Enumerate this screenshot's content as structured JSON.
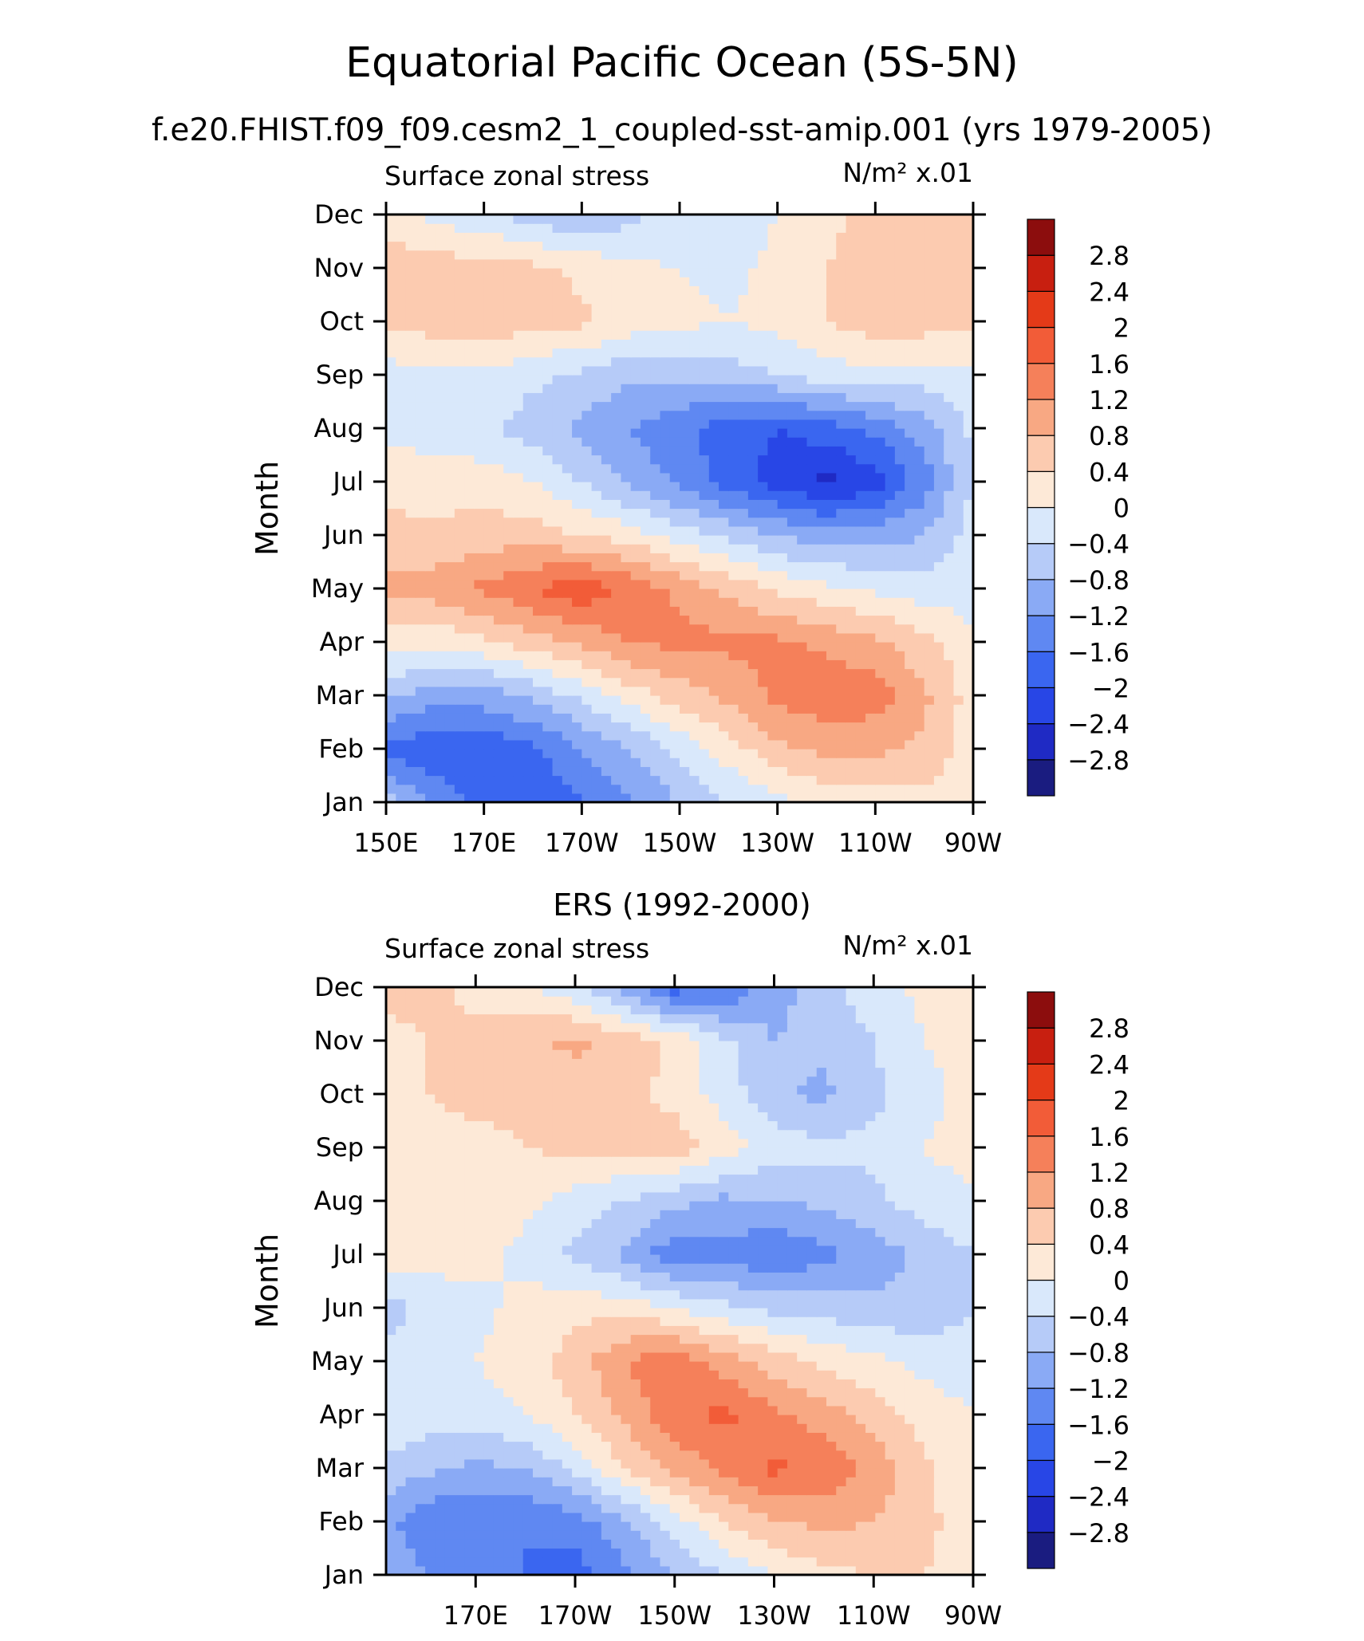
{
  "chart_data": [
    {
      "type": "heatmap",
      "title": "Equatorial Pacific Ocean (5S-5N)",
      "subtitle": "f.e20.FHIST.f09_f09.cesm2_1_coupled-sst-amip.001 (yrs 1979-2005)",
      "left_label": "Surface zonal stress",
      "units": "N/m² x.01",
      "ylabel": "Month",
      "x_ticks": [
        "150E",
        "170E",
        "170W",
        "150W",
        "130W",
        "110W",
        "90W"
      ],
      "y_ticks": [
        "Jan",
        "Feb",
        "Mar",
        "Apr",
        "May",
        "Jun",
        "Jul",
        "Aug",
        "Sep",
        "Oct",
        "Nov",
        "Dec"
      ],
      "xlim": [
        150,
        270
      ],
      "levels": [
        -2.8,
        -2.4,
        -2,
        -1.6,
        -1.2,
        -0.8,
        -0.4,
        0,
        0.4,
        0.8,
        1.2,
        1.6,
        2,
        2.4,
        2.8
      ],
      "colorbar_labels": [
        "2.8",
        "2.4",
        "2",
        "1.6",
        "1.2",
        "0.8",
        "0.4",
        "0",
        "−0.4",
        "−0.8",
        "−1.2",
        "−1.6",
        "−2",
        "−2.4",
        "−2.8"
      ],
      "colors": [
        "#1a1c80",
        "#1f2ac4",
        "#2846e6",
        "#3a66f0",
        "#5f88f2",
        "#8aaaf5",
        "#b6cbf8",
        "#d9e8fb",
        "#fde9d7",
        "#fccbb0",
        "#f8a883",
        "#f5805a",
        "#f25c38",
        "#e43a18",
        "#c81f10",
        "#8c0d0d"
      ],
      "x": [
        150,
        160,
        170,
        180,
        190,
        200,
        210,
        220,
        230,
        240,
        250,
        260,
        270
      ],
      "rows": [
        [
          -0.6,
          -1.2,
          -1.8,
          -2.0,
          -1.6,
          -1.2,
          -0.8,
          -0.4,
          -0.1,
          0.1,
          0.2,
          0.3,
          0.2
        ],
        [
          -1.7,
          -2.0,
          -1.9,
          -1.7,
          -1.2,
          -0.8,
          -0.3,
          0.2,
          0.7,
          0.9,
          0.9,
          0.7,
          0.2
        ],
        [
          -0.7,
          -1.0,
          -1.0,
          -0.7,
          -0.3,
          0.2,
          0.6,
          0.9,
          1.3,
          1.5,
          1.4,
          0.9,
          0.2
        ],
        [
          0.2,
          0.1,
          0.3,
          0.6,
          0.9,
          1.2,
          1.3,
          1.3,
          1.3,
          1.1,
          0.9,
          0.5,
          0.1
        ],
        [
          0.9,
          1.0,
          1.3,
          1.6,
          1.9,
          1.5,
          1.1,
          0.7,
          0.3,
          0.1,
          -0.1,
          -0.2,
          -0.2
        ],
        [
          0.5,
          0.5,
          0.6,
          0.6,
          0.4,
          0.2,
          -0.2,
          -0.5,
          -0.8,
          -1.0,
          -1.0,
          -0.8,
          -0.2
        ],
        [
          0.3,
          0.2,
          0.2,
          0.0,
          -0.4,
          -0.9,
          -1.3,
          -1.8,
          -2.2,
          -2.5,
          -2.2,
          -1.4,
          -0.4
        ],
        [
          -0.1,
          -0.2,
          -0.3,
          -0.6,
          -0.9,
          -1.2,
          -1.5,
          -1.8,
          -2.0,
          -1.8,
          -1.5,
          -1.0,
          -0.3
        ],
        [
          -0.2,
          -0.1,
          -0.1,
          -0.3,
          -0.5,
          -0.7,
          -0.7,
          -0.6,
          -0.4,
          -0.2,
          -0.1,
          -0.2,
          -0.1
        ],
        [
          0.5,
          0.6,
          0.6,
          0.6,
          0.5,
          0.2,
          0.1,
          0.0,
          0.1,
          0.4,
          0.6,
          0.6,
          0.5
        ],
        [
          0.7,
          0.6,
          0.6,
          0.5,
          0.3,
          0.1,
          0.0,
          -0.1,
          0.1,
          0.4,
          0.6,
          0.7,
          0.6
        ],
        [
          0.2,
          -0.1,
          -0.3,
          -0.6,
          -0.8,
          -0.5,
          -0.3,
          -0.2,
          0.0,
          0.3,
          0.5,
          0.6,
          0.5
        ]
      ]
    },
    {
      "type": "heatmap",
      "title": "ERS (1992-2000)",
      "left_label": "Surface zonal stress",
      "units": "N/m² x.01",
      "ylabel": "Month",
      "x_ticks": [
        "170E",
        "170W",
        "150W",
        "130W",
        "110W",
        "90W"
      ],
      "y_ticks": [
        "Jan",
        "Feb",
        "Mar",
        "Apr",
        "May",
        "Jun",
        "Jul",
        "Aug",
        "Sep",
        "Oct",
        "Nov",
        "Dec"
      ],
      "xlim": [
        152,
        270
      ],
      "levels": [
        -2.8,
        -2.4,
        -2,
        -1.6,
        -1.2,
        -0.8,
        -0.4,
        0,
        0.4,
        0.8,
        1.2,
        1.6,
        2,
        2.4,
        2.8
      ],
      "colorbar_labels": [
        "2.8",
        "2.4",
        "2",
        "1.6",
        "1.2",
        "0.8",
        "0.4",
        "0",
        "−0.4",
        "−0.8",
        "−1.2",
        "−1.6",
        "−2",
        "−2.4",
        "−2.8"
      ],
      "colors": [
        "#1a1c80",
        "#1f2ac4",
        "#2846e6",
        "#3a66f0",
        "#5f88f2",
        "#8aaaf5",
        "#b6cbf8",
        "#d9e8fb",
        "#fde9d7",
        "#fccbb0",
        "#f8a883",
        "#f5805a",
        "#f25c38",
        "#e43a18",
        "#c81f10",
        "#8c0d0d"
      ],
      "x": [
        152,
        160,
        170,
        180,
        190,
        200,
        210,
        220,
        230,
        240,
        250,
        260,
        270
      ],
      "rows": [
        [
          -0.9,
          -1.2,
          -1.4,
          -1.6,
          -1.8,
          -1.3,
          -0.8,
          -0.4,
          0.0,
          0.3,
          0.4,
          0.4,
          0.3
        ],
        [
          -1.1,
          -1.5,
          -1.6,
          -1.6,
          -1.4,
          -0.9,
          -0.2,
          0.4,
          0.8,
          0.9,
          0.8,
          0.5,
          0.2
        ],
        [
          -0.5,
          -0.7,
          -0.9,
          -0.8,
          -0.3,
          0.4,
          0.9,
          1.3,
          1.7,
          1.5,
          1.1,
          0.5,
          0.1
        ],
        [
          -0.1,
          -0.2,
          -0.2,
          0.0,
          0.4,
          0.9,
          1.5,
          1.7,
          1.3,
          1.0,
          0.6,
          0.2,
          0.0
        ],
        [
          -0.2,
          -0.1,
          0.0,
          0.2,
          0.6,
          1.2,
          1.5,
          1.0,
          0.6,
          0.3,
          0.1,
          -0.1,
          -0.2
        ],
        [
          -0.6,
          -0.3,
          -0.1,
          0.1,
          0.3,
          0.2,
          0.0,
          -0.3,
          -0.5,
          -0.6,
          -0.7,
          -0.7,
          -0.4
        ],
        [
          0.2,
          0.2,
          0.1,
          -0.1,
          -0.5,
          -0.9,
          -1.5,
          -1.3,
          -1.6,
          -1.3,
          -1.0,
          -0.7,
          -0.4
        ],
        [
          0.1,
          0.2,
          0.2,
          0.1,
          -0.2,
          -0.4,
          -0.7,
          -0.9,
          -0.8,
          -0.7,
          -0.5,
          -0.2,
          -0.1
        ],
        [
          0.2,
          0.3,
          0.3,
          0.4,
          0.5,
          0.5,
          0.6,
          0.2,
          -0.2,
          -0.3,
          -0.3,
          0.0,
          0.2
        ],
        [
          0.3,
          0.4,
          0.5,
          0.5,
          0.6,
          0.5,
          0.3,
          -0.2,
          -0.7,
          -0.9,
          -0.5,
          -0.2,
          0.2
        ],
        [
          0.3,
          0.4,
          0.5,
          0.7,
          0.9,
          0.7,
          0.3,
          -0.3,
          -0.8,
          -0.7,
          -0.4,
          0.0,
          0.2
        ],
        [
          0.5,
          0.5,
          0.3,
          0.1,
          -0.3,
          -1.0,
          -1.8,
          -1.6,
          -1.0,
          -0.5,
          -0.2,
          0.1,
          0.3
        ]
      ]
    }
  ]
}
